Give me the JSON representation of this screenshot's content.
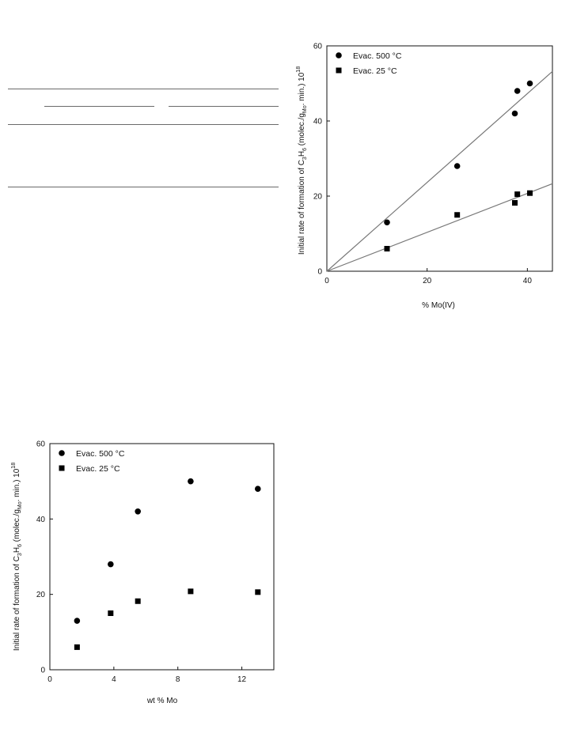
{
  "chart_data": [
    {
      "type": "scatter",
      "xlabel": "% Mo(IV)",
      "ylabel": "Initial rate of formation of C3H6 (molec./gMo. min.) 10^18",
      "xlim": [
        0,
        45
      ],
      "ylim": [
        0,
        60
      ],
      "xticks": [
        0,
        20,
        40
      ],
      "yticks": [
        0,
        20,
        40,
        60
      ],
      "grid": false,
      "legend_position": "top-left",
      "series": [
        {
          "name": "Evac. 500 °C",
          "marker": "circle",
          "x": [
            12,
            26,
            37.5,
            38,
            40.5
          ],
          "y": [
            13,
            28,
            42,
            48,
            50
          ],
          "fit_line": {
            "x": [
              0,
              45
            ],
            "y": [
              0,
              53.2
            ]
          }
        },
        {
          "name": "Evac. 25 °C",
          "marker": "square",
          "x": [
            12,
            26,
            37.5,
            38,
            40.5
          ],
          "y": [
            6,
            15,
            18.2,
            20.5,
            20.8
          ],
          "fit_line": {
            "x": [
              0,
              45
            ],
            "y": [
              0,
              23.3
            ]
          }
        }
      ]
    },
    {
      "type": "scatter",
      "xlabel": "wt % Mo",
      "ylabel": "Initial rate of formation of C3H6 (molec./gMo. min.) 10^18",
      "xlim": [
        0,
        14
      ],
      "ylim": [
        0,
        60
      ],
      "xticks": [
        0,
        4,
        8,
        12
      ],
      "yticks": [
        0,
        20,
        40,
        60
      ],
      "grid": false,
      "legend_position": "top-left",
      "series": [
        {
          "name": "Evac. 500 °C",
          "marker": "circle",
          "x": [
            1.7,
            3.8,
            5.5,
            8.8,
            13
          ],
          "y": [
            13,
            28,
            42,
            50,
            48
          ]
        },
        {
          "name": "Evac. 25 °C",
          "marker": "square",
          "x": [
            1.7,
            3.8,
            5.5,
            8.8,
            13
          ],
          "y": [
            6,
            15,
            18.2,
            20.8,
            20.6
          ]
        }
      ]
    }
  ]
}
